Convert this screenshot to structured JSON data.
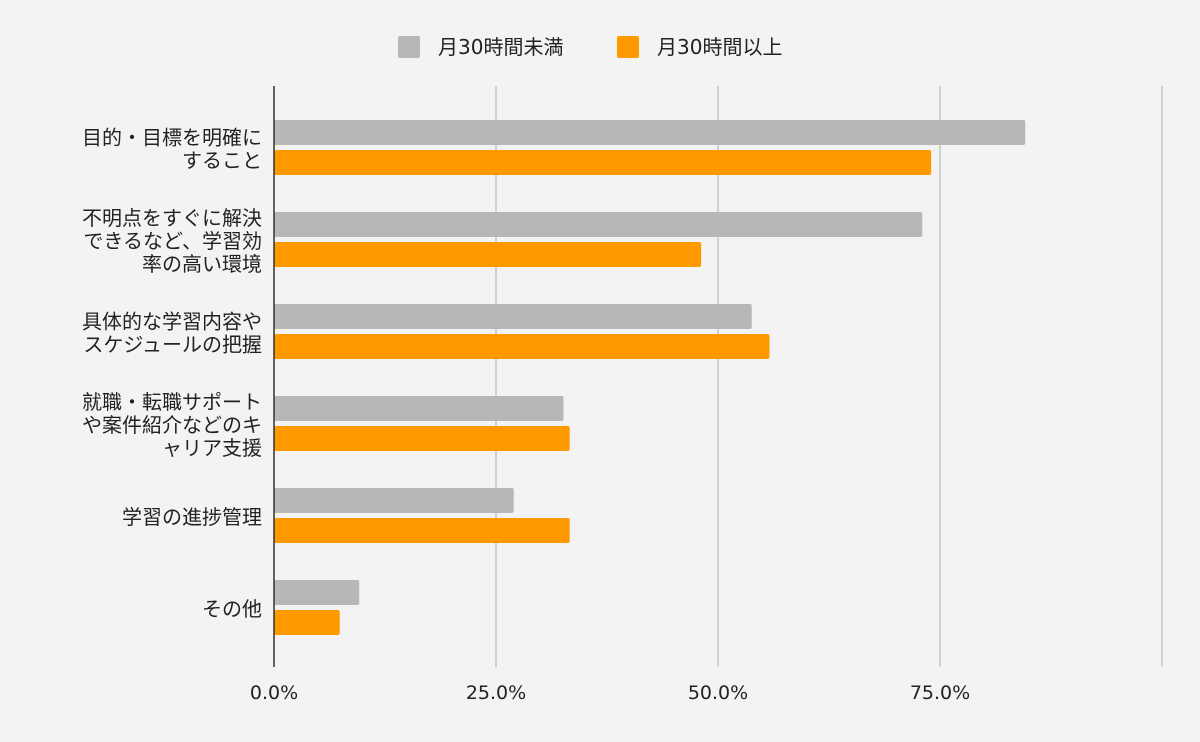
{
  "chart_data": {
    "type": "bar",
    "orientation": "horizontal",
    "categories": [
      [
        "目的・目標を明確に",
        "すること"
      ],
      [
        "不明点をすぐに解決",
        "できるなど、学習効",
        "率の高い環境"
      ],
      [
        "具体的な学習内容や",
        "スケジュールの把握"
      ],
      [
        "就職・転職サポート",
        "や案件紹介などのキ",
        "ャリア支援"
      ],
      [
        "学習の進捗管理"
      ],
      [
        "その他"
      ]
    ],
    "series": [
      {
        "name": "月30時間未満",
        "color": "#b7b7b7",
        "values": [
          84.6,
          73.0,
          53.8,
          32.6,
          27.0,
          9.6
        ]
      },
      {
        "name": "月30時間以上",
        "color": "#ff9900",
        "values": [
          74.0,
          48.1,
          55.8,
          33.3,
          33.3,
          7.4
        ]
      }
    ],
    "xlim": [
      0,
      100
    ],
    "xticks": [
      0,
      25,
      50,
      75,
      100
    ],
    "xtick_labels": [
      "0.0%",
      "25.0%",
      "50.0%",
      "75.0%",
      ""
    ],
    "grid": true,
    "legend_position": "top-center",
    "title": "",
    "xlabel": "",
    "ylabel": ""
  }
}
